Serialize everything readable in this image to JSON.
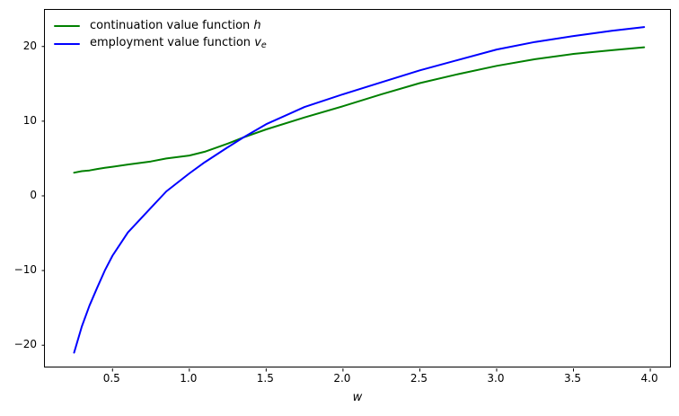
{
  "figure": {
    "background": "#ffffff",
    "frame_color": "#000000"
  },
  "legend": {
    "position": "upper left",
    "frame": false,
    "entries": [
      {
        "id": "continuation-value",
        "color": "#008000",
        "label_text": "continuation value function",
        "label_math": "h",
        "label_sub": ""
      },
      {
        "id": "employment-value",
        "color": "#0000ff",
        "label_text": "employment value function",
        "label_math": "v",
        "label_sub": "e"
      }
    ]
  },
  "axes": {
    "xlabel": "w",
    "ylabel": "",
    "xticks": [
      {
        "value": 0.5,
        "label": "0.5"
      },
      {
        "value": 1.0,
        "label": "1.0"
      },
      {
        "value": 1.5,
        "label": "1.5"
      },
      {
        "value": 2.0,
        "label": "2.0"
      },
      {
        "value": 2.5,
        "label": "2.5"
      },
      {
        "value": 3.0,
        "label": "3.0"
      },
      {
        "value": 3.5,
        "label": "3.5"
      },
      {
        "value": 4.0,
        "label": "4.0"
      }
    ],
    "yticks": [
      {
        "value": -20,
        "label": "−20"
      },
      {
        "value": -10,
        "label": "−10"
      },
      {
        "value": 0,
        "label": "0"
      },
      {
        "value": 10,
        "label": "10"
      },
      {
        "value": 20,
        "label": "20"
      }
    ]
  },
  "chart_data": {
    "type": "line",
    "title": "",
    "xlabel": "w",
    "ylabel": "",
    "xlim": [
      0.06,
      4.14
    ],
    "ylim": [
      -23.1,
      24.9
    ],
    "grid": false,
    "legend_position": "upper left",
    "x": [
      0.25,
      0.3,
      0.35,
      0.4,
      0.45,
      0.5,
      0.6,
      0.75,
      0.85,
      1.0,
      1.1,
      1.25,
      1.35,
      1.5,
      1.75,
      2.0,
      2.25,
      2.5,
      2.75,
      3.0,
      3.25,
      3.5,
      3.75,
      3.96
    ],
    "series": [
      {
        "id": "continuation-value",
        "name": "continuation value function h",
        "color": "#008000",
        "line_width": 2,
        "values": [
          3.1,
          3.3,
          3.4,
          3.6,
          3.75,
          3.9,
          4.2,
          4.6,
          5.0,
          5.4,
          5.9,
          7.0,
          7.8,
          8.9,
          10.5,
          12.0,
          13.6,
          15.1,
          16.3,
          17.4,
          18.3,
          19.0,
          19.5,
          19.9
        ]
      },
      {
        "id": "employment-value",
        "name": "employment value function v_e",
        "color": "#0000ff",
        "line_width": 2,
        "values": [
          -21.0,
          -17.5,
          -14.7,
          -12.3,
          -10.0,
          -8.0,
          -4.9,
          -1.6,
          0.6,
          3.0,
          4.5,
          6.5,
          7.8,
          9.6,
          11.9,
          13.6,
          15.2,
          16.8,
          18.2,
          19.6,
          20.6,
          21.4,
          22.1,
          22.6
        ]
      }
    ],
    "annotations": {
      "intersection": {
        "w": 1.35,
        "value": 7.8
      }
    }
  }
}
